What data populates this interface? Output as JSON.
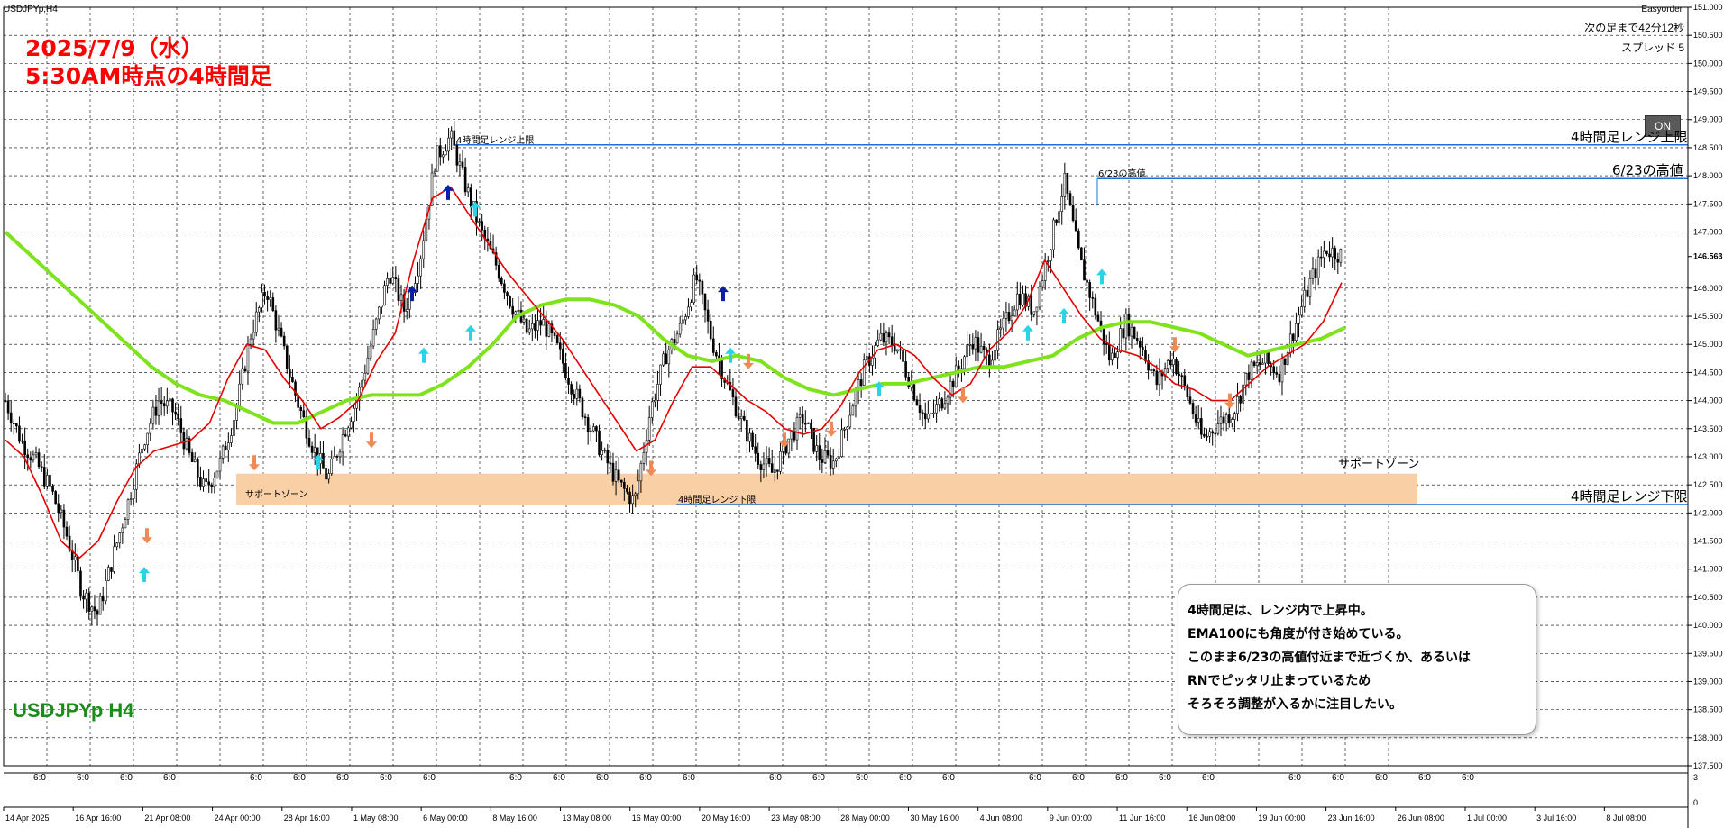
{
  "window": {
    "title": "USDJPYp,H4",
    "easyorder": "Easyorder",
    "next_bar": "次の足まで42分12秒",
    "spread": "スプレッド 5",
    "on_label": "ON"
  },
  "overlay": {
    "date_title": "2025/7/9（水）",
    "time_title": "5:30AM時点の4時間足",
    "symbol": "USDJPYp H4"
  },
  "lines": {
    "upper_label_right": "4時間足レンジ上限",
    "upper_label_left": "4時間足レンジ上限",
    "high_label_right": "6/23の高値",
    "high_label_left": "6/23の高値",
    "lower_label_right": "4時間足レンジ下限",
    "lower_label_left": "4時間足レンジ下限"
  },
  "zone": {
    "label_right": "サポートゾーン",
    "label_left": "サポートゾーン",
    "color": "#f9cfa6"
  },
  "comment": {
    "lines": [
      "4時間足は、レンジ内で上昇中。",
      "EMA100にも角度が付き始めている。",
      "このまま6/23の高値付近まで近づくか、あるいは",
      "RNでピッタリ止まっているため",
      "そろそろ調整が入るかに注目したい。"
    ]
  },
  "chart_data": {
    "type": "candlestick",
    "symbol": "USDJPYp",
    "timeframe": "H4",
    "ylim": [
      137.5,
      151.0
    ],
    "y_tick_step": 0.5,
    "price_ticks": [
      "151.000",
      "150.500",
      "150.000",
      "149.500",
      "149.000",
      "148.500",
      "148.000",
      "147.500",
      "147.000",
      "146.563",
      "146.000",
      "145.500",
      "145.000",
      "144.500",
      "144.000",
      "143.500",
      "143.000",
      "142.500",
      "142.000",
      "141.500",
      "141.000",
      "140.500",
      "140.000",
      "139.500",
      "139.000",
      "138.500",
      "138.000",
      "137.500"
    ],
    "current_price": "146.563",
    "levels": {
      "range_upper": 148.55,
      "jun23_high": 147.95,
      "range_lower": 142.15,
      "support_zone": [
        142.15,
        142.7
      ]
    },
    "date_labels": [
      "14 Apr 2025",
      "16 Apr 16:00",
      "21 Apr 08:00",
      "24 Apr 00:00",
      "28 Apr 16:00",
      "1 May 08:00",
      "6 May 00:00",
      "8 May 16:00",
      "13 May 08:00",
      "16 May 00:00",
      "20 May 16:00",
      "23 May 08:00",
      "28 May 00:00",
      "30 May 16:00",
      "4 Jun 08:00",
      "9 Jun 00:00",
      "11 Jun 16:00",
      "16 Jun 08:00",
      "19 Jun 00:00",
      "23 Jun 16:00",
      "26 Jun 08:00",
      "1 Jul 00:00",
      "3 Jul 16:00",
      "8 Jul 08:00"
    ],
    "session_labels": [
      "6:0",
      "6:0",
      "6:0",
      "6:0",
      "6:0",
      "6:0",
      "6:0",
      "6:0",
      "6:0",
      "6:0",
      "6:0",
      "6:0",
      "6:0",
      "6:0",
      "6:0",
      "6:0",
      "6:0",
      "6:0",
      "6:0",
      "6:0",
      "6:0",
      "6:0",
      "6:0",
      "6:0",
      "6:0",
      "6:0",
      "6:0",
      "6:0",
      "6:0"
    ],
    "sub_axis": [
      "3",
      "0"
    ],
    "close_path": [
      144.0,
      143.3,
      142.9,
      142.4,
      141.6,
      140.6,
      140.2,
      141.2,
      142.2,
      143.3,
      144.0,
      143.8,
      143.0,
      142.4,
      142.9,
      143.8,
      145.2,
      146.0,
      145.0,
      144.0,
      143.2,
      142.6,
      143.4,
      144.1,
      145.2,
      146.3,
      145.6,
      146.5,
      148.3,
      148.7,
      147.8,
      147.0,
      146.4,
      145.7,
      145.2,
      145.4,
      144.9,
      144.2,
      143.6,
      143.0,
      142.5,
      142.2,
      143.8,
      144.8,
      145.3,
      146.2,
      145.1,
      144.3,
      143.6,
      143.0,
      142.7,
      143.3,
      143.7,
      143.0,
      142.9,
      143.8,
      144.6,
      145.1,
      145.0,
      144.3,
      143.6,
      144.0,
      144.5,
      145.1,
      144.7,
      145.3,
      145.9,
      145.6,
      146.7,
      147.9,
      146.5,
      145.6,
      144.7,
      145.4,
      145.0,
      144.3,
      144.8,
      144.1,
      143.3,
      143.6,
      143.8,
      144.5,
      144.7,
      144.5,
      145.3,
      146.1,
      146.7,
      146.6
    ],
    "ema_fast": [
      143.3,
      143.0,
      142.3,
      141.5,
      141.2,
      141.5,
      142.2,
      142.8,
      143.1,
      143.2,
      143.3,
      143.6,
      144.4,
      145.0,
      144.9,
      144.4,
      144.0,
      143.5,
      143.7,
      144.0,
      144.7,
      145.2,
      146.5,
      147.6,
      147.8,
      147.3,
      146.8,
      146.3,
      145.9,
      145.5,
      145.1,
      144.6,
      144.1,
      143.6,
      143.1,
      143.3,
      144.0,
      144.6,
      144.6,
      144.3,
      144.0,
      143.8,
      143.5,
      143.4,
      143.5,
      143.9,
      144.5,
      144.9,
      145.0,
      144.8,
      144.4,
      144.1,
      144.3,
      144.9,
      145.2,
      145.7,
      146.5,
      146.0,
      145.5,
      145.1,
      144.9,
      144.8,
      144.6,
      144.3,
      144.2,
      144.0,
      144.0,
      144.3,
      144.6,
      144.8,
      145.0,
      145.4,
      146.1
    ],
    "ema100": [
      147.0,
      146.6,
      146.2,
      145.8,
      145.4,
      145.0,
      144.6,
      144.3,
      144.1,
      144.0,
      143.8,
      143.6,
      143.6,
      143.8,
      144.0,
      144.1,
      144.1,
      144.1,
      144.3,
      144.6,
      145.0,
      145.5,
      145.7,
      145.8,
      145.8,
      145.7,
      145.5,
      145.1,
      144.8,
      144.7,
      144.8,
      144.7,
      144.4,
      144.2,
      144.1,
      144.2,
      144.3,
      144.3,
      144.4,
      144.5,
      144.6,
      144.6,
      144.7,
      144.8,
      145.1,
      145.3,
      145.4,
      145.4,
      145.3,
      145.2,
      145.0,
      144.8,
      144.9,
      145.0,
      145.1,
      145.3
    ],
    "buy_arrows": [
      [
        140.9,
        "cyan"
      ],
      [
        142.9,
        "cyan"
      ],
      [
        144.8,
        "cyan"
      ],
      [
        145.2,
        "cyan"
      ],
      [
        147.4,
        "cyan"
      ],
      [
        144.8,
        "cyan"
      ],
      [
        144.2,
        "cyan"
      ],
      [
        145.2,
        "cyan"
      ],
      [
        145.5,
        "cyan"
      ],
      [
        146.2,
        "cyan"
      ],
      [
        145.9,
        "blue"
      ],
      [
        147.7,
        "blue"
      ],
      [
        145.9,
        "blue"
      ]
    ],
    "sell_arrows": [
      [
        141.6,
        "orange"
      ],
      [
        142.9,
        "orange"
      ],
      [
        143.3,
        "orange"
      ],
      [
        142.8,
        "orange"
      ],
      [
        144.7,
        "orange"
      ],
      [
        143.3,
        "orange"
      ],
      [
        143.5,
        "orange"
      ],
      [
        144.1,
        "orange"
      ],
      [
        145.0,
        "orange"
      ],
      [
        144.0,
        "orange"
      ]
    ]
  }
}
